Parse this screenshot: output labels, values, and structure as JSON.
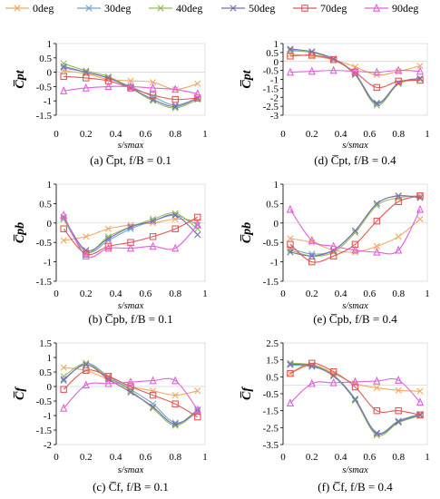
{
  "legend": [
    {
      "label": "0deg",
      "color": "#f0a868",
      "marker": "x"
    },
    {
      "label": "30deg",
      "color": "#6fa6c8",
      "marker": "x"
    },
    {
      "label": "40deg",
      "color": "#8fbf55",
      "marker": "x"
    },
    {
      "label": "50deg",
      "color": "#7b6cb4",
      "marker": "x"
    },
    {
      "label": "70deg",
      "color": "#e05858",
      "marker": "square"
    },
    {
      "label": "90deg",
      "color": "#e060d8",
      "marker": "triangle"
    }
  ],
  "chart_data": [
    {
      "type": "line",
      "id": "a",
      "panel": "left",
      "row": 0,
      "ylabel": "C̅pt",
      "xlabel": "s/smax",
      "caption": "(a) C̅pt, f/B = 0.1",
      "ylim": [
        -1.5,
        1
      ],
      "yticks": [
        1,
        0.5,
        0,
        -0.5,
        -1,
        -1.5
      ],
      "ytick_labels": [
        "1",
        "0.5",
        "0",
        "-0.5",
        "-1",
        "-1.5"
      ],
      "xlim": [
        0,
        1
      ],
      "xticks": [
        0,
        0.2,
        0.4,
        0.6,
        0.8,
        1
      ],
      "xtick_labels": [
        "0",
        "0.2",
        "0.4",
        "0.6",
        "0.8",
        "1"
      ],
      "x": [
        0.05,
        0.2,
        0.35,
        0.5,
        0.65,
        0.8,
        0.95
      ],
      "series": [
        {
          "name": "0deg",
          "values": [
            0.05,
            -0.05,
            -0.25,
            -0.3,
            -0.35,
            -0.6,
            -0.4
          ]
        },
        {
          "name": "30deg",
          "values": [
            0.15,
            0.0,
            -0.2,
            -0.5,
            -0.85,
            -1.15,
            -0.9
          ]
        },
        {
          "name": "40deg",
          "values": [
            0.3,
            0.05,
            -0.15,
            -0.55,
            -1.0,
            -1.25,
            -0.95
          ]
        },
        {
          "name": "50deg",
          "values": [
            0.2,
            0.0,
            -0.2,
            -0.55,
            -0.95,
            -1.2,
            -0.9
          ]
        },
        {
          "name": "70deg",
          "values": [
            -0.15,
            -0.2,
            -0.3,
            -0.55,
            -0.8,
            -0.95,
            -0.9
          ]
        },
        {
          "name": "90deg",
          "values": [
            -0.65,
            -0.55,
            -0.5,
            -0.5,
            -0.55,
            -0.6,
            -0.75
          ]
        }
      ]
    },
    {
      "type": "line",
      "id": "d",
      "panel": "right",
      "row": 0,
      "ylabel": "C̅pt",
      "xlabel": "s/smax",
      "caption": "(d) C̅pt, f/B = 0.4",
      "ylim": [
        -3,
        1
      ],
      "yticks": [
        1,
        0.5,
        0,
        -0.5,
        -1,
        -1.5,
        -2,
        -2.5,
        -3
      ],
      "ytick_labels": [
        "1",
        "0.5",
        "0",
        "-0.5",
        "-1",
        "-1.5",
        "-2",
        "-2.5",
        "-3"
      ],
      "xlim": [
        0,
        1
      ],
      "xticks": [
        0,
        0.2,
        0.4,
        0.6,
        0.8,
        1
      ],
      "xtick_labels": [
        "0",
        "0.2",
        "0.4",
        "0.6",
        "0.8",
        "1"
      ],
      "x": [
        0.05,
        0.2,
        0.35,
        0.5,
        0.65,
        0.8,
        0.95
      ],
      "series": [
        {
          "name": "0deg",
          "values": [
            0.4,
            0.3,
            0.1,
            -0.3,
            -0.75,
            -0.55,
            -0.25
          ]
        },
        {
          "name": "30deg",
          "values": [
            0.6,
            0.5,
            0.1,
            -0.7,
            -2.3,
            -1.2,
            -0.95
          ]
        },
        {
          "name": "40deg",
          "values": [
            0.65,
            0.5,
            0.15,
            -0.75,
            -2.45,
            -1.25,
            -1.0
          ]
        },
        {
          "name": "50deg",
          "values": [
            0.7,
            0.55,
            0.15,
            -0.7,
            -2.35,
            -1.2,
            -0.95
          ]
        },
        {
          "name": "70deg",
          "values": [
            0.3,
            0.35,
            0.1,
            -0.6,
            -1.45,
            -1.1,
            -1.05
          ]
        },
        {
          "name": "90deg",
          "values": [
            -0.6,
            -0.55,
            -0.5,
            -0.55,
            -0.6,
            -0.5,
            -0.55
          ]
        }
      ]
    },
    {
      "type": "line",
      "id": "b",
      "panel": "left",
      "row": 1,
      "ylabel": "C̅pb",
      "xlabel": "s/smax",
      "caption": "(b) C̅pb, f/B = 0.1",
      "ylim": [
        -1.5,
        1
      ],
      "yticks": [
        1,
        0.5,
        0,
        -0.5,
        -1,
        -1.5
      ],
      "ytick_labels": [
        "1",
        "0.5",
        "0",
        "-0.5",
        "-1",
        "-1.5"
      ],
      "xlim": [
        0,
        1
      ],
      "xticks": [
        0,
        0.2,
        0.4,
        0.6,
        0.8,
        1
      ],
      "xtick_labels": [
        "0",
        "0.2",
        "0.4",
        "0.6",
        "0.8",
        "1"
      ],
      "x": [
        0.05,
        0.2,
        0.35,
        0.5,
        0.65,
        0.8,
        0.95
      ],
      "series": [
        {
          "name": "0deg",
          "values": [
            -0.45,
            -0.35,
            -0.15,
            -0.05,
            0.0,
            0.1,
            0.05
          ]
        },
        {
          "name": "30deg",
          "values": [
            0.1,
            -0.75,
            -0.45,
            -0.15,
            0.05,
            0.2,
            -0.05
          ]
        },
        {
          "name": "40deg",
          "values": [
            0.1,
            -0.75,
            -0.35,
            -0.1,
            0.1,
            0.25,
            -0.15
          ]
        },
        {
          "name": "50deg",
          "values": [
            0.15,
            -0.7,
            -0.4,
            -0.1,
            0.05,
            0.2,
            -0.3
          ]
        },
        {
          "name": "70deg",
          "values": [
            -0.15,
            -0.8,
            -0.6,
            -0.5,
            -0.35,
            -0.15,
            0.15
          ]
        },
        {
          "name": "90deg",
          "values": [
            0.2,
            -0.85,
            -0.65,
            -0.65,
            -0.6,
            -0.65,
            -0.05
          ]
        }
      ]
    },
    {
      "type": "line",
      "id": "e",
      "panel": "right",
      "row": 1,
      "ylabel": "C̅pb",
      "xlabel": "s/smax",
      "caption": "(e) C̅pb, f/B = 0.4",
      "ylim": [
        -1.5,
        1
      ],
      "yticks": [
        1,
        0.5,
        0,
        -0.5,
        -1,
        -1.5
      ],
      "ytick_labels": [
        "1",
        "0.5",
        "0",
        "-0.5",
        "-1",
        "-1.5"
      ],
      "xlim": [
        0,
        1
      ],
      "xticks": [
        0,
        0.2,
        0.4,
        0.6,
        0.8,
        1
      ],
      "xtick_labels": [
        "0",
        "0.2",
        "0.4",
        "0.6",
        "0.8",
        "1"
      ],
      "x": [
        0.05,
        0.2,
        0.35,
        0.5,
        0.65,
        0.8,
        0.95
      ],
      "series": [
        {
          "name": "0deg",
          "values": [
            -0.4,
            -0.5,
            -0.7,
            -0.75,
            -0.6,
            -0.35,
            0.1
          ]
        },
        {
          "name": "30deg",
          "values": [
            -0.65,
            -0.8,
            -0.7,
            -0.2,
            0.5,
            0.7,
            0.65
          ]
        },
        {
          "name": "40deg",
          "values": [
            -0.7,
            -0.85,
            -0.75,
            -0.25,
            0.45,
            0.65,
            0.7
          ]
        },
        {
          "name": "50deg",
          "values": [
            -0.75,
            -0.85,
            -0.7,
            -0.2,
            0.5,
            0.7,
            0.65
          ]
        },
        {
          "name": "70deg",
          "values": [
            -0.55,
            -1.0,
            -0.85,
            -0.55,
            0.05,
            0.55,
            0.7
          ]
        },
        {
          "name": "90deg",
          "values": [
            0.35,
            -0.45,
            -0.6,
            -0.7,
            -0.75,
            -0.7,
            0.35
          ]
        }
      ]
    },
    {
      "type": "line",
      "id": "c",
      "panel": "left",
      "row": 2,
      "ylabel": "C̅f",
      "xlabel": "s/smax",
      "caption": "(c) C̅f, f/B = 0.1",
      "ylim": [
        -2,
        1.5
      ],
      "yticks": [
        1.5,
        1,
        0.5,
        0,
        -0.5,
        -1,
        -1.5,
        -2
      ],
      "ytick_labels": [
        "1.5",
        "1",
        "0.5",
        "0",
        "-0.5",
        "-1",
        "-1.5",
        "-2"
      ],
      "xlim": [
        0,
        1
      ],
      "xticks": [
        0,
        0.2,
        0.4,
        0.6,
        0.8,
        1
      ],
      "xtick_labels": [
        "0",
        "0.2",
        "0.4",
        "0.6",
        "0.8",
        "1"
      ],
      "x": [
        0.05,
        0.2,
        0.35,
        0.5,
        0.65,
        0.8,
        0.95
      ],
      "series": [
        {
          "name": "0deg",
          "values": [
            0.65,
            0.55,
            0.25,
            0.0,
            -0.15,
            -0.3,
            -0.15
          ]
        },
        {
          "name": "30deg",
          "values": [
            0.2,
            0.8,
            0.35,
            -0.1,
            -0.6,
            -1.25,
            -0.9
          ]
        },
        {
          "name": "40deg",
          "values": [
            0.35,
            0.8,
            0.3,
            -0.15,
            -0.75,
            -1.35,
            -0.85
          ]
        },
        {
          "name": "50deg",
          "values": [
            0.25,
            0.75,
            0.25,
            -0.2,
            -0.7,
            -1.3,
            -0.8
          ]
        },
        {
          "name": "70deg",
          "values": [
            -0.1,
            0.55,
            0.35,
            0.0,
            -0.3,
            -0.6,
            -1.05
          ]
        },
        {
          "name": "90deg",
          "values": [
            -0.75,
            0.05,
            0.1,
            0.15,
            0.2,
            0.2,
            -0.8
          ]
        }
      ]
    },
    {
      "type": "line",
      "id": "f",
      "panel": "right",
      "row": 2,
      "ylabel": "C̅f",
      "xlabel": "s/smax",
      "caption": "(f) C̅f, f/B = 0.4",
      "ylim": [
        -3.5,
        2.5
      ],
      "yticks": [
        2.5,
        1.5,
        0.5,
        -0.5,
        -1.5,
        -2.5,
        -3.5
      ],
      "ytick_labels": [
        "2.5",
        "1.5",
        "0.5",
        "-0.5",
        "-1.5",
        "-2.5",
        "-3.5"
      ],
      "xlim": [
        0,
        1
      ],
      "xticks": [
        0,
        0.2,
        0.4,
        0.6,
        0.8,
        1
      ],
      "xtick_labels": [
        "0",
        "0.2",
        "0.4",
        "0.6",
        "0.8",
        "1"
      ],
      "x": [
        0.05,
        0.2,
        0.35,
        0.5,
        0.65,
        0.8,
        0.95
      ],
      "series": [
        {
          "name": "0deg",
          "values": [
            0.7,
            1.2,
            0.7,
            0.1,
            -0.15,
            -0.3,
            -0.35
          ]
        },
        {
          "name": "30deg",
          "values": [
            1.2,
            1.1,
            0.6,
            -0.8,
            -2.8,
            -2.1,
            -1.7
          ]
        },
        {
          "name": "40deg",
          "values": [
            1.3,
            1.2,
            0.6,
            -0.9,
            -2.95,
            -2.2,
            -1.8
          ]
        },
        {
          "name": "50deg",
          "values": [
            1.25,
            1.15,
            0.55,
            -0.85,
            -2.85,
            -2.15,
            -1.75
          ]
        },
        {
          "name": "70deg",
          "values": [
            0.7,
            1.3,
            0.8,
            -0.1,
            -1.5,
            -1.5,
            -1.75
          ]
        },
        {
          "name": "90deg",
          "values": [
            -1.05,
            0.1,
            0.15,
            0.2,
            0.25,
            0.3,
            -1.0
          ]
        }
      ]
    }
  ]
}
